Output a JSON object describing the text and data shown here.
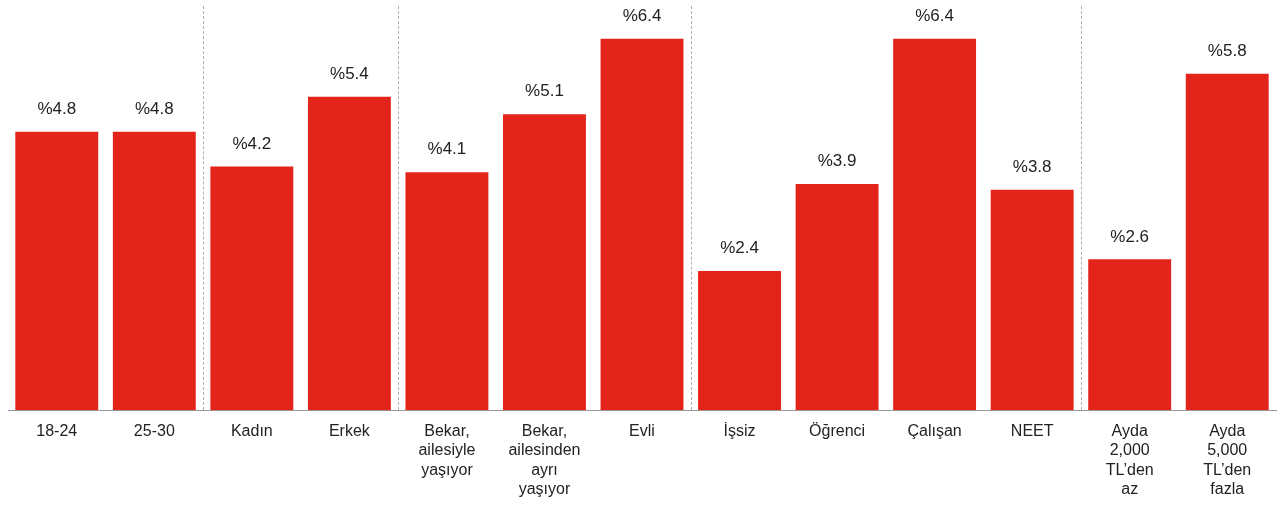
{
  "chart_data": {
    "type": "bar",
    "categories": [
      "18-24",
      "25-30",
      "Kadın",
      "Erkek",
      "Bekar, ailesiyle yaşıyor",
      "Bekar, ailesinden ayrı yaşıyor",
      "Evli",
      "İşsiz",
      "Öğrenci",
      "Çalışan",
      "NEET",
      "Ayda 2,000 TL’den az",
      "Ayda 5,000 TL’den fazla"
    ],
    "values": [
      4.8,
      4.8,
      4.2,
      5.4,
      4.1,
      5.1,
      6.4,
      2.4,
      3.9,
      6.4,
      3.8,
      2.6,
      5.8
    ],
    "value_labels": [
      "%4.8",
      "%4.8",
      "%4.2",
      "%5.4",
      "%4.1",
      "%5.1",
      "%6.4",
      "%2.4",
      "%3.9",
      "%6.4",
      "%3.8",
      "%2.6",
      "%5.8"
    ],
    "color": "#e3241b",
    "grid": false,
    "legend": false
  }
}
